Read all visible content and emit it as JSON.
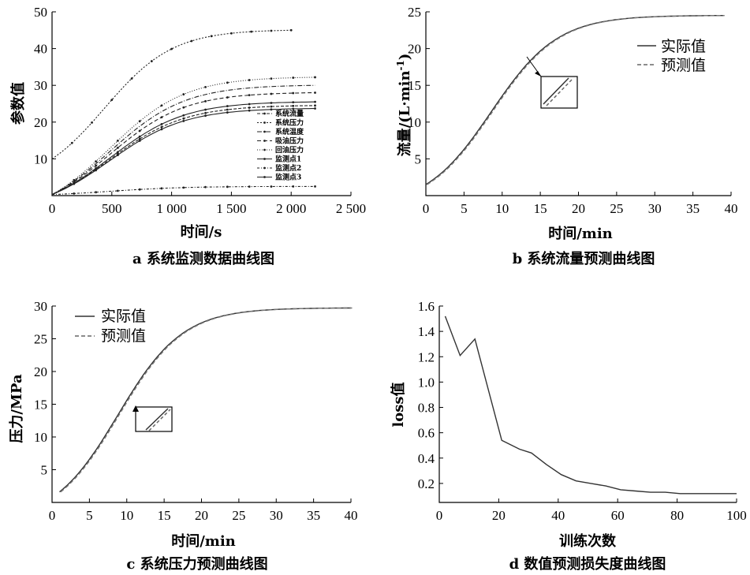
{
  "charts": [
    {
      "type": "line",
      "xlabel": "时间/s",
      "ylabel": "参数值",
      "caption": "a 系统监测数据曲线图",
      "xlim": [
        0,
        2500
      ],
      "ylim": [
        0,
        50
      ],
      "xticks": [
        "0",
        "500",
        "1 000",
        "1 500",
        "2 000",
        "2 500"
      ],
      "yticks": [
        "10",
        "20",
        "30",
        "40",
        "50"
      ],
      "series": [
        {
          "name": "系统流量",
          "x0": 0,
          "x1": 2200,
          "y0": 0.3,
          "y1": 24.5
        },
        {
          "name": "系统压力",
          "x0": 0,
          "x1": 2000,
          "y0": 10,
          "y1": 45
        },
        {
          "name": "系统温度",
          "x0": 0,
          "x1": 2200,
          "y0": 0.3,
          "y1": 30
        },
        {
          "name": "吸油压力",
          "x0": 0,
          "x1": 2200,
          "y0": 0.3,
          "y1": 28
        },
        {
          "name": "回油压力",
          "x0": 0,
          "x1": 2200,
          "y0": 0.3,
          "y1": 32.2
        },
        {
          "name": "监测点1",
          "x0": 0,
          "x1": 2200,
          "y0": 0.3,
          "y1": 25.5
        },
        {
          "name": "监测点2",
          "x0": 0,
          "x1": 2200,
          "y0": 0.3,
          "y1": 2.5
        },
        {
          "name": "监测点3",
          "x0": 0,
          "x1": 2200,
          "y0": 0.3,
          "y1": 23.7
        }
      ]
    },
    {
      "type": "line",
      "xlabel": "时间/min",
      "ylabel": "流量/(L·min-1)",
      "ylabel_main": "流量/(L·min",
      "ylabel_sup": "-1",
      "ylabel_end": ")",
      "caption": "b 系统流量预测曲线图",
      "xlim": [
        0,
        40
      ],
      "ylim": [
        0,
        25
      ],
      "xticks": [
        "0",
        "5",
        "10",
        "15",
        "20",
        "25",
        "30",
        "35",
        "40"
      ],
      "yticks": [
        "5",
        "10",
        "15",
        "20",
        "25"
      ],
      "series": [
        {
          "name": "实际值",
          "x0": 0,
          "x1": 39,
          "y0": 1.5,
          "y1": 24.5
        },
        {
          "name": "预测值",
          "x0": 0,
          "x1": 39,
          "y0": 1.5,
          "y1": 24.5
        }
      ]
    },
    {
      "type": "line",
      "xlabel": "时间/min",
      "ylabel": "压力/MPa",
      "caption": "c 系统压力预测曲线图",
      "xlim": [
        0,
        40
      ],
      "ylim": [
        0,
        30
      ],
      "xticks": [
        "0",
        "5",
        "10",
        "15",
        "20",
        "25",
        "30",
        "35",
        "40"
      ],
      "yticks": [
        "5",
        "10",
        "15",
        "20",
        "25",
        "30"
      ],
      "series": [
        {
          "name": "实际值",
          "x0": 1,
          "x1": 40,
          "y0": 1.6,
          "y1": 29.7
        },
        {
          "name": "预测值",
          "x0": 1,
          "x1": 40,
          "y0": 1.6,
          "y1": 29.7
        }
      ]
    },
    {
      "type": "line",
      "xlabel": "训练次数",
      "ylabel": "loss值",
      "caption": "d 数值预测损失度曲线图",
      "xlim": [
        0,
        100
      ],
      "ylim": [
        0.05,
        1.6
      ],
      "xticks": [
        "0",
        "20",
        "40",
        "60",
        "80",
        "100"
      ],
      "yticks": [
        "0.2",
        "0.4",
        "0.6",
        "0.8",
        "1.0",
        "1.2",
        "1.4",
        "1.6"
      ],
      "x": [
        2,
        7,
        12,
        21,
        27,
        31,
        36,
        41,
        46,
        51,
        56,
        61,
        66,
        71,
        76,
        81,
        86,
        91,
        96,
        100
      ],
      "values": [
        1.52,
        1.21,
        1.34,
        0.54,
        0.47,
        0.44,
        0.35,
        0.27,
        0.22,
        0.2,
        0.18,
        0.15,
        0.14,
        0.13,
        0.13,
        0.12,
        0.12,
        0.12,
        0.12,
        0.12
      ]
    }
  ]
}
